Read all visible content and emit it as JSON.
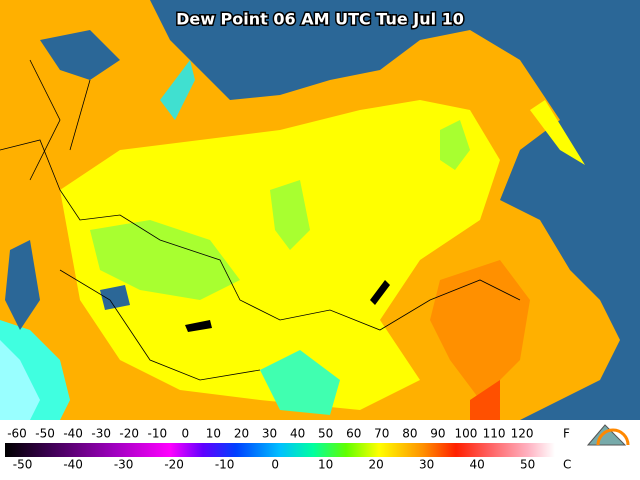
{
  "title": "Dew Point 06 AM UTC Tue Jul 10",
  "legend": {
    "f_ticks": [
      -60,
      -50,
      -40,
      -30,
      -20,
      -10,
      0,
      10,
      20,
      30,
      40,
      50,
      60,
      70,
      80,
      90,
      100,
      110,
      120
    ],
    "f_unit": "F",
    "c_ticks": [
      -50,
      -40,
      -30,
      -20,
      -10,
      0,
      10,
      20,
      30,
      40,
      50
    ],
    "c_unit": "C"
  }
}
